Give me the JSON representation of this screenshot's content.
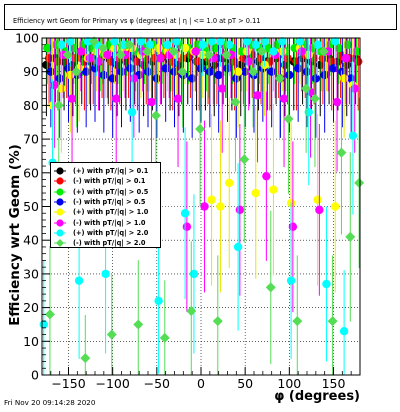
{
  "title": "Efficiency wrt Geom for Primary vs φ (degrees) at | η | <= 1.0 at pT > 0.11",
  "footer": "Fri Nov 20 09:14:28 2020",
  "chart_data": {
    "type": "scatter",
    "title": "Efficiency wrt Geom for Primary vs φ (degrees) at | η | <= 1.0 at pT > 0.11",
    "xlabel": "φ (degrees)",
    "ylabel": "Efficiency wrt Geom (%)",
    "xlim": [
      -180,
      180
    ],
    "ylim": [
      0,
      100
    ],
    "xticks": [
      -150,
      -100,
      -50,
      0,
      50,
      100,
      150
    ],
    "yticks": [
      0,
      10,
      20,
      30,
      40,
      50,
      60,
      70,
      80,
      90,
      100
    ],
    "grid": true,
    "legend_position": "left-middle",
    "series": [
      {
        "name": "(+) with pT/|q| > 0.1",
        "color": "#000000",
        "marker": "circle",
        "x": [
          -175,
          -165,
          -155,
          -145,
          -135,
          -125,
          -115,
          -105,
          -95,
          -85,
          -75,
          -65,
          -55,
          -45,
          -35,
          -25,
          -15,
          -5,
          5,
          15,
          25,
          35,
          45,
          55,
          65,
          75,
          85,
          95,
          105,
          115,
          125,
          135,
          145,
          155,
          165,
          175
        ],
        "y": [
          92,
          94,
          93,
          92,
          94,
          93,
          93,
          94,
          92,
          93,
          94,
          92,
          93,
          94,
          93,
          92,
          94,
          93,
          93,
          92,
          94,
          93,
          92,
          94,
          93,
          93,
          94,
          92,
          93,
          94,
          93,
          92,
          94,
          93,
          92,
          94
        ]
      },
      {
        "name": "(-) with pT/|q| > 0.1",
        "color": "#ff0000",
        "marker": "circle",
        "x": [
          -172,
          -162,
          -152,
          -142,
          -132,
          -122,
          -112,
          -102,
          -92,
          -82,
          -72,
          -62,
          -52,
          -42,
          -32,
          -22,
          -12,
          -2,
          8,
          18,
          28,
          38,
          48,
          58,
          68,
          78,
          88,
          98,
          108,
          118,
          128,
          138,
          148,
          158,
          168,
          178
        ],
        "y": [
          94,
          93,
          95,
          94,
          93,
          94,
          95,
          93,
          94,
          95,
          93,
          94,
          94,
          95,
          93,
          94,
          95,
          93,
          94,
          94,
          95,
          93,
          94,
          95,
          94,
          93,
          95,
          94,
          93,
          95,
          94,
          94,
          93,
          95,
          94,
          93
        ]
      },
      {
        "name": "(+) with pT/|q| > 0.5",
        "color": "#00ee00",
        "marker": "circle",
        "x": [
          -174,
          -164,
          -154,
          -144,
          -134,
          -124,
          -114,
          -104,
          -94,
          -84,
          -74,
          -64,
          -54,
          -44,
          -34,
          -24,
          -14,
          -4,
          6,
          16,
          26,
          36,
          46,
          56,
          66,
          76,
          86,
          96,
          106,
          116,
          126,
          136,
          146,
          156,
          166,
          176
        ],
        "y": [
          97,
          98,
          96,
          97,
          98,
          97,
          96,
          98,
          97,
          98,
          96,
          97,
          98,
          97,
          96,
          98,
          97,
          98,
          96,
          97,
          98,
          97,
          96,
          98,
          97,
          97,
          98,
          96,
          97,
          98,
          97,
          96,
          98,
          97,
          98,
          96
        ]
      },
      {
        "name": "(-) with pT/|q| > 0.5",
        "color": "#0000ee",
        "marker": "circle",
        "x": [
          -170,
          -160,
          -150,
          -140,
          -130,
          -120,
          -110,
          -100,
          -90,
          -80,
          -70,
          -60,
          -50,
          -40,
          -30,
          -20,
          -10,
          0,
          10,
          20,
          30,
          40,
          50,
          60,
          70,
          80,
          90,
          100,
          110,
          120,
          130,
          140,
          150,
          160,
          170
        ],
        "y": [
          90,
          88,
          91,
          89,
          90,
          91,
          89,
          88,
          90,
          91,
          89,
          90,
          88,
          91,
          90,
          89,
          88,
          91,
          90,
          89,
          91,
          88,
          90,
          89,
          91,
          90,
          88,
          89,
          91,
          90,
          88,
          89,
          91,
          90,
          88
        ]
      },
      {
        "name": "(+) with pT/|q| > 1.0",
        "color": "#ffff00",
        "marker": "circle",
        "x": [
          -168,
          -158,
          -148,
          -138,
          -128,
          -118,
          -108,
          -98,
          -88,
          -78,
          -68,
          -58,
          -48,
          -38,
          -28,
          -18,
          -8,
          2,
          12,
          22,
          32,
          42,
          52,
          62,
          72,
          82,
          92,
          102,
          112,
          122,
          132,
          142,
          152,
          162,
          172
        ],
        "y": [
          80,
          85,
          89,
          91,
          94,
          96,
          95,
          97,
          96,
          97,
          95,
          96,
          97,
          96,
          95,
          97,
          96,
          95,
          52,
          50,
          57,
          90,
          96,
          54,
          92,
          55,
          96,
          51,
          97,
          95,
          52,
          96,
          50,
          88,
          86
        ]
      },
      {
        "name": "(-) with pT/|q| > 1.0",
        "color": "#ff00ff",
        "marker": "circle",
        "x": [
          -166,
          -156,
          -146,
          -136,
          -126,
          -116,
          -106,
          -96,
          -86,
          -76,
          -66,
          -56,
          -46,
          -36,
          -26,
          -16,
          -6,
          4,
          14,
          24,
          34,
          44,
          54,
          64,
          74,
          84,
          94,
          104,
          114,
          124,
          134,
          144,
          154,
          164,
          174
        ],
        "y": [
          86,
          95,
          82,
          96,
          94,
          93,
          95,
          82,
          95,
          88,
          96,
          81,
          94,
          95,
          82,
          44,
          96,
          50,
          94,
          85,
          95,
          49,
          93,
          83,
          59,
          95,
          82,
          44,
          96,
          84,
          49,
          96,
          81,
          94,
          85
        ]
      },
      {
        "name": "(+) with pT/|q| > 2.0",
        "color": "#00ffff",
        "marker": "circle",
        "x": [
          -178,
          -168,
          -158,
          -148,
          -138,
          -128,
          -118,
          -108,
          -98,
          -88,
          -78,
          -68,
          -58,
          -48,
          -38,
          -28,
          -18,
          -8,
          2,
          12,
          22,
          32,
          42,
          52,
          62,
          72,
          82,
          92,
          102,
          112,
          122,
          132,
          142,
          152,
          162,
          172
        ],
        "y": [
          15,
          63,
          98,
          99,
          28,
          99,
          98,
          30,
          99,
          98,
          78,
          99,
          98,
          22,
          98,
          99,
          48,
          30,
          98,
          99,
          99,
          98,
          38,
          99,
          98,
          99,
          96,
          99,
          28,
          99,
          78,
          98,
          27,
          99,
          13,
          71
        ]
      },
      {
        "name": "(-) with pT/|q| > 2.0",
        "color": "#55dd55",
        "marker": "diamond",
        "x": [
          -171,
          -161,
          -151,
          -141,
          -131,
          -121,
          -111,
          -101,
          -91,
          -81,
          -71,
          -61,
          -51,
          -41,
          -31,
          -21,
          -11,
          -1,
          9,
          19,
          29,
          39,
          49,
          59,
          69,
          79,
          89,
          99,
          109,
          119,
          129,
          139,
          149,
          159,
          169,
          179
        ],
        "y": [
          18,
          80,
          95,
          90,
          5,
          99,
          97,
          12,
          95,
          98,
          15,
          96,
          77,
          11,
          96,
          90,
          19,
          73,
          95,
          16,
          95,
          81,
          64,
          90,
          96,
          26,
          88,
          76,
          16,
          85,
          82,
          96,
          16,
          66,
          41,
          57
        ]
      }
    ]
  }
}
